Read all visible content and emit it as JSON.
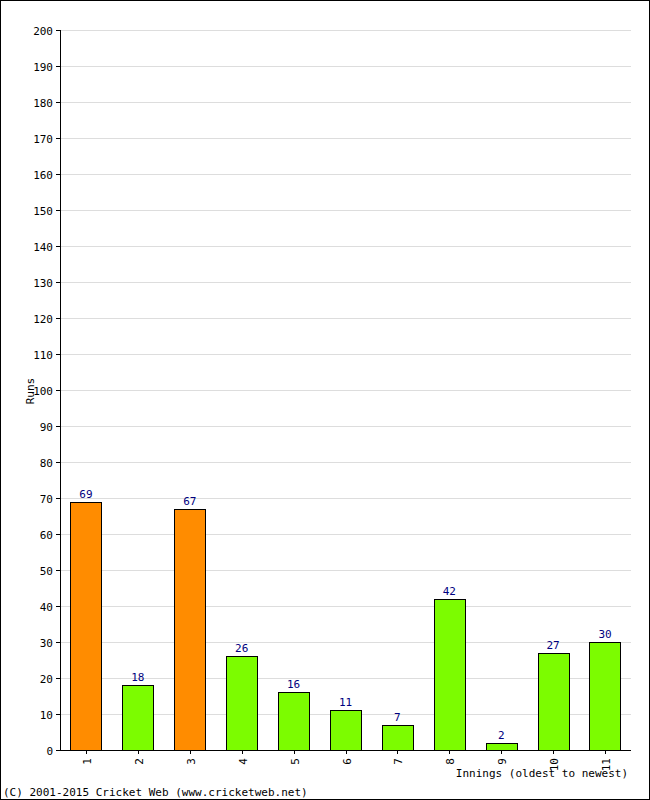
{
  "chart_data": {
    "type": "bar",
    "x_label": "Innings (oldest to newest)",
    "y_label": "Runs",
    "annotations": [
      "(C) 2001-2015 Cricket Web (www.cricketweb.net)"
    ],
    "categories": [
      "1",
      "2",
      "3",
      "4",
      "5",
      "6",
      "7",
      "8",
      "9",
      "10",
      "11"
    ],
    "values": [
      69,
      18,
      67,
      26,
      16,
      11,
      7,
      42,
      2,
      27,
      30
    ],
    "colors": [
      "#ff8c00",
      "#7cfc00",
      "#ff8c00",
      "#7cfc00",
      "#7cfc00",
      "#7cfc00",
      "#7cfc00",
      "#7cfc00",
      "#7cfc00",
      "#7cfc00",
      "#7cfc00"
    ],
    "ylim": [
      0,
      200
    ],
    "yticks": [
      0,
      10,
      20,
      30,
      40,
      50,
      60,
      70,
      80,
      90,
      100,
      110,
      120,
      130,
      140,
      150,
      160,
      170,
      180,
      190,
      200
    ],
    "grid": true,
    "data_labels": true
  }
}
